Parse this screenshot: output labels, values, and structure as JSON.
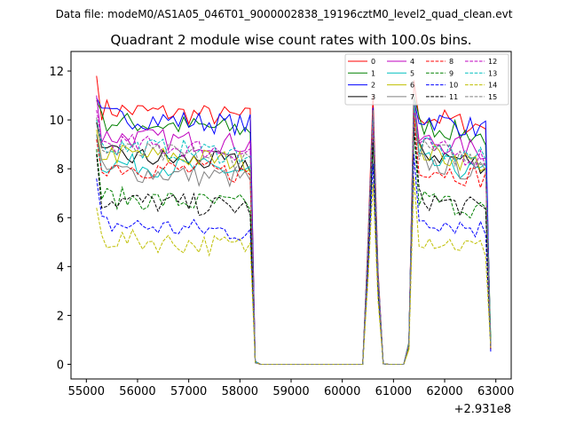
{
  "suptitle": "Data file: modeM0/AS1A05_046T01_9000002838_19196cztM0_level2_quad_clean.evt",
  "chart_data": {
    "type": "line",
    "title": "Quadrant 2 module wise count rates with 100.0s bins.",
    "xlabel": "",
    "ylabel": "",
    "x_offset_label": "+2.931e8",
    "xlim": [
      54700,
      63300
    ],
    "ylim": [
      -0.6,
      12.8
    ],
    "x_ticks": [
      55000,
      56000,
      57000,
      58000,
      59000,
      60000,
      61000,
      62000,
      63000
    ],
    "x_tick_labels": [
      "55000",
      "56000",
      "57000",
      "58000",
      "59000",
      "60000",
      "61000",
      "62000",
      "63000"
    ],
    "y_ticks": [
      0,
      2,
      4,
      6,
      8,
      10,
      12
    ],
    "y_tick_labels": [
      "0",
      "2",
      "4",
      "6",
      "8",
      "10",
      "12"
    ],
    "legend_location": "top-right",
    "segments": [
      {
        "x_start": 55200,
        "x_end": 58200,
        "step": 100
      },
      {
        "x_start": 58300,
        "x_end": 60400,
        "step": 100
      },
      {
        "x_start": 60500,
        "x_end": 60800,
        "step": 100
      },
      {
        "x_start": 61000,
        "x_end": 61200,
        "step": 100
      },
      {
        "x_start": 61300,
        "x_end": 62900,
        "step": 100
      }
    ],
    "series": [
      {
        "name": "0",
        "color": "#ff0000",
        "dash": "solid",
        "base1": 10.1,
        "base2": 9.7,
        "first": 11.8,
        "spike": 11.0
      },
      {
        "name": "1",
        "color": "#008000",
        "dash": "solid",
        "base1": 9.6,
        "base2": 9.3,
        "first": 10.8,
        "spike": 10.4
      },
      {
        "name": "2",
        "color": "#0000ff",
        "dash": "solid",
        "base1": 9.8,
        "base2": 9.6,
        "first": 10.9,
        "spike": 10.5
      },
      {
        "name": "3",
        "color": "#000000",
        "dash": "solid",
        "base1": 8.2,
        "base2": 8.2,
        "first": 9.9,
        "spike": 10.1
      },
      {
        "name": "4",
        "color": "#bf00bf",
        "dash": "solid",
        "base1": 9.0,
        "base2": 8.7,
        "first": 11.0,
        "spike": 10.2
      },
      {
        "name": "5",
        "color": "#00bfbf",
        "dash": "solid",
        "base1": 7.9,
        "base2": 7.8,
        "first": 9.4,
        "spike": 10.0
      },
      {
        "name": "6",
        "color": "#bfbf00",
        "dash": "solid",
        "base1": 8.3,
        "base2": 8.2,
        "first": 9.6,
        "spike": 9.6
      },
      {
        "name": "7",
        "color": "#808080",
        "dash": "solid",
        "base1": 7.6,
        "base2": 7.8,
        "first": 9.4,
        "spike": 9.4
      },
      {
        "name": "8",
        "color": "#ff0000",
        "dash": "dashed",
        "base1": 7.8,
        "base2": 7.6,
        "first": 9.2,
        "spike": 9.8
      },
      {
        "name": "9",
        "color": "#008000",
        "dash": "dashed",
        "base1": 6.5,
        "base2": 6.3,
        "first": 8.8,
        "spike": 9.0
      },
      {
        "name": "10",
        "color": "#0000ff",
        "dash": "dashed",
        "base1": 5.4,
        "base2": 5.5,
        "first": 7.6,
        "spike": 8.2
      },
      {
        "name": "11",
        "color": "#000000",
        "dash": "dashed",
        "base1": 6.4,
        "base2": 6.3,
        "first": 8.6,
        "spike": 9.2
      },
      {
        "name": "12",
        "color": "#bf00bf",
        "dash": "dashed",
        "base1": 8.7,
        "base2": 8.4,
        "first": 10.4,
        "spike": 10.0
      },
      {
        "name": "13",
        "color": "#00bfbf",
        "dash": "dashed",
        "base1": 8.6,
        "base2": 8.4,
        "first": 10.0,
        "spike": 10.3
      },
      {
        "name": "14",
        "color": "#bfbf00",
        "dash": "dashed",
        "base1": 4.8,
        "base2": 4.7,
        "first": 6.4,
        "spike": 7.4
      },
      {
        "name": "15",
        "color": "#808080",
        "dash": "dashed",
        "base1": 8.4,
        "base2": 8.3,
        "first": 10.1,
        "spike": 10.4
      }
    ]
  }
}
